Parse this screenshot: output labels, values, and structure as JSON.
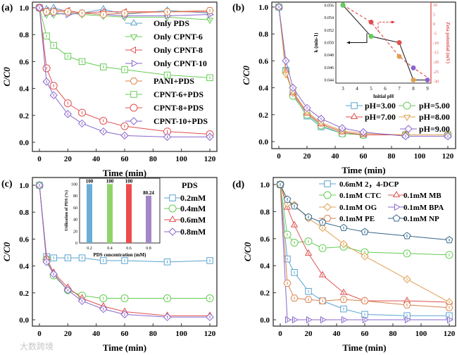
{
  "watermark": "大数跨境",
  "chart_data": [
    {
      "panel": "(a)",
      "type": "line",
      "xlabel": "Time (min)",
      "ylabel": "C/C0",
      "xlim": [
        -3,
        125
      ],
      "ylim": [
        0,
        1.0
      ],
      "xticks": [
        0,
        20,
        40,
        60,
        80,
        100,
        120
      ],
      "yticks": [
        0,
        0.2,
        0.4,
        0.6,
        0.8,
        1.0
      ],
      "x": [
        0,
        5,
        10,
        20,
        30,
        45,
        60,
        90,
        120
      ],
      "series": [
        {
          "name": "Only PDS",
          "color": "#5ba3d0",
          "marker": "tri-up",
          "values": [
            1,
            0.99,
            1,
            0.97,
            0.96,
            0.99,
            0.95,
            0.98,
            0.96
          ]
        },
        {
          "name": "Only CPNT-6",
          "color": "#66cc55",
          "marker": "tri-down",
          "values": [
            1,
            0.95,
            0.95,
            0.96,
            0.95,
            0.94,
            0.93,
            0.93,
            0.91
          ]
        },
        {
          "name": "Only CPNT-8",
          "color": "#e05050",
          "marker": "tri-left",
          "values": [
            1,
            0.98,
            0.98,
            0.98,
            0.96,
            0.97,
            0.97,
            0.97,
            0.97
          ]
        },
        {
          "name": "Only CPNT-10",
          "color": "#8866cc",
          "marker": "tri-right",
          "values": [
            1,
            0.96,
            0.96,
            0.95,
            0.96,
            0.95,
            0.94,
            0.94,
            0.95
          ]
        },
        {
          "name": "PANI+PDS",
          "color": "#d9824e",
          "marker": "hexagon",
          "values": [
            1,
            0.97,
            0.97,
            0.97,
            0.96,
            0.95,
            0.96,
            0.97,
            0.98
          ]
        },
        {
          "name": "CPNT-6+PDS",
          "color": "#66cc55",
          "marker": "square",
          "values": [
            1,
            0.79,
            0.72,
            0.64,
            0.6,
            0.56,
            0.54,
            0.5,
            0.48
          ]
        },
        {
          "name": "CPNT-8+PDS",
          "color": "#e05050",
          "marker": "circle",
          "values": [
            1,
            0.55,
            0.42,
            0.29,
            0.22,
            0.16,
            0.12,
            0.08,
            0.06
          ]
        },
        {
          "name": "CPNT-10+PDS",
          "color": "#8866cc",
          "marker": "diamond",
          "values": [
            1,
            0.45,
            0.35,
            0.21,
            0.14,
            0.08,
            0.05,
            0.04,
            0.04
          ]
        }
      ]
    },
    {
      "panel": "(b)",
      "type": "line",
      "xlabel": "Time (min)",
      "ylabel": "C/C0",
      "xlim": [
        -3,
        125
      ],
      "ylim": [
        0,
        1.0
      ],
      "xticks": [
        0,
        20,
        40,
        60,
        80,
        100,
        120
      ],
      "yticks": [
        0,
        0.2,
        0.4,
        0.6,
        0.8,
        1.0
      ],
      "x": [
        0,
        5,
        10,
        20,
        30,
        45,
        60,
        90,
        120
      ],
      "series": [
        {
          "name": "pH=3.00",
          "color": "#5ba3d0",
          "marker": "square",
          "values": [
            1,
            0.53,
            0.35,
            0.19,
            0.11,
            0.06,
            0.05,
            0.05,
            0.05
          ]
        },
        {
          "name": "pH=5.00",
          "color": "#66cc55",
          "marker": "circle",
          "values": [
            1,
            0.52,
            0.34,
            0.2,
            0.12,
            0.06,
            0.05,
            0.05,
            0.05
          ]
        },
        {
          "name": "pH=7.00",
          "color": "#e05050",
          "marker": "tri-up",
          "values": [
            1,
            0.52,
            0.36,
            0.21,
            0.13,
            0.07,
            0.05,
            0.05,
            0.05
          ]
        },
        {
          "name": "pH=8.00",
          "color": "#e0a050",
          "marker": "tri-down",
          "values": [
            1,
            0.5,
            0.37,
            0.22,
            0.14,
            0.08,
            0.06,
            0.05,
            0.05
          ]
        },
        {
          "name": "pH=9.00",
          "color": "#8866cc",
          "marker": "diamond",
          "values": [
            1,
            0.6,
            0.4,
            0.25,
            0.17,
            0.1,
            0.07,
            0.04,
            0.04
          ]
        }
      ],
      "inset": {
        "type": "scatter",
        "xlabel": "Initial pH",
        "ylabel": "k (min-1)",
        "y2label": "Zeta potential (mV)",
        "x": [
          3,
          5,
          7,
          8,
          9
        ],
        "k": [
          0.056,
          0.051,
          0.05,
          0.044,
          0.044
        ],
        "k_x": [
          3,
          5,
          7,
          8,
          9
        ],
        "zeta_x": [
          3,
          5,
          7,
          8
        ],
        "zeta": [
          10,
          1,
          -17,
          -23
        ],
        "zeta_end": -28,
        "point_colors": [
          "#5ba3d0",
          "#66cc55",
          "#e05050",
          "#e0a050",
          "#8866cc"
        ],
        "xticks": [
          3,
          4,
          5,
          6,
          7,
          8,
          9
        ],
        "yticks": [
          0.044,
          0.046,
          0.048,
          0.05,
          0.052,
          0.054,
          0.056
        ],
        "y2ticks": [
          10,
          5,
          0,
          -5,
          -10,
          -15,
          -20,
          -25,
          -30
        ],
        "ylim": [
          0.0435,
          0.0565
        ],
        "y2lim": [
          -31,
          11.5
        ]
      }
    },
    {
      "panel": "(c)",
      "type": "line",
      "xlabel": "Time (min)",
      "ylabel": "C/C0",
      "xlim": [
        -3,
        125
      ],
      "ylim": [
        0,
        1.0
      ],
      "xticks": [
        0,
        20,
        40,
        60,
        80,
        100,
        120
      ],
      "yticks": [
        0,
        0.2,
        0.4,
        0.6,
        0.8,
        1.0
      ],
      "legend_title": "PDS",
      "x": [
        0,
        5,
        10,
        20,
        30,
        45,
        60,
        90,
        120
      ],
      "series": [
        {
          "name": "0.2mM",
          "color": "#5ba3d0",
          "marker": "square",
          "values": [
            1,
            0.47,
            0.46,
            0.46,
            0.46,
            0.44,
            0.44,
            0.43,
            0.44
          ]
        },
        {
          "name": "0.4mM",
          "color": "#66cc55",
          "marker": "circle",
          "values": [
            1,
            0.45,
            0.33,
            0.22,
            0.18,
            0.16,
            0.16,
            0.16,
            0.16
          ]
        },
        {
          "name": "0.6mM",
          "color": "#e05050",
          "marker": "tri-up",
          "values": [
            1,
            0.46,
            0.35,
            0.24,
            0.16,
            0.1,
            0.06,
            0.03,
            0.03
          ]
        },
        {
          "name": "0.8mM",
          "color": "#8866cc",
          "marker": "diamond",
          "values": [
            1,
            0.43,
            0.34,
            0.22,
            0.14,
            0.08,
            0.04,
            0.02,
            0.02
          ]
        }
      ],
      "inset": {
        "type": "bar",
        "xlabel": "PDS concentration (mM)",
        "ylabel": "Utilization of PDS (%)",
        "categories": [
          "0.2",
          "0.4",
          "0.6",
          "0.8"
        ],
        "values": [
          100,
          100,
          100,
          80.24
        ],
        "labels": [
          "100",
          "100",
          "100",
          "80.24"
        ],
        "colors": [
          "#6aaed6",
          "#8fd46a",
          "#ee4b4b",
          "#a487c8"
        ],
        "yticks": [
          0,
          20,
          40,
          60,
          80,
          100
        ],
        "ylim": [
          0,
          110
        ]
      }
    },
    {
      "panel": "(d)",
      "type": "line",
      "xlabel": "Time (min)",
      "ylabel": "C/C0",
      "xlim": [
        -3,
        125
      ],
      "ylim": [
        0,
        1.0
      ],
      "xticks": [
        0,
        20,
        40,
        60,
        80,
        100,
        120
      ],
      "yticks": [
        0,
        0.2,
        0.4,
        0.6,
        0.8,
        1.0
      ],
      "x": [
        0,
        5,
        10,
        20,
        30,
        45,
        60,
        90,
        120
      ],
      "series": [
        {
          "name": "0.6mM 2，4-DCP",
          "color": "#5ba3d0",
          "marker": "square",
          "values": [
            1,
            0.45,
            0.35,
            0.21,
            0.14,
            0.08,
            0.04,
            0.03,
            0.03
          ]
        },
        {
          "name": "0.1mM CTC",
          "color": "#66cc55",
          "marker": "circle",
          "values": [
            1,
            0.63,
            0.57,
            0.58,
            0.53,
            0.54,
            0.5,
            0.49,
            0.48
          ]
        },
        {
          "name": "0.1mM MB",
          "color": "#e05050",
          "marker": "tri-up",
          "values": [
            1,
            0.83,
            0.7,
            0.49,
            0.33,
            0.2,
            0.14,
            0.14,
            0.13
          ]
        },
        {
          "name": "0.1mM OG",
          "color": "#e0a050",
          "marker": "diamond",
          "values": [
            1,
            0.86,
            0.85,
            0.75,
            0.68,
            0.56,
            0.47,
            0.3,
            0.13
          ]
        },
        {
          "name": "0.1mM BPA",
          "color": "#8866cc",
          "marker": "tri-right",
          "values": [
            1,
            0,
            0,
            0,
            0,
            0,
            0,
            0,
            0
          ]
        },
        {
          "name": "0.1mM PE",
          "color": "#d9824e",
          "marker": "hexagon",
          "values": [
            1,
            0.27,
            0.16,
            0.15,
            0.14,
            0.15,
            0.14,
            0.11,
            0.09
          ]
        },
        {
          "name": "0.1mM NP",
          "color": "#336688",
          "marker": "pentagon",
          "values": [
            1,
            0.89,
            0.84,
            0.76,
            0.72,
            0.68,
            0.65,
            0.62,
            0.59
          ]
        }
      ]
    }
  ]
}
